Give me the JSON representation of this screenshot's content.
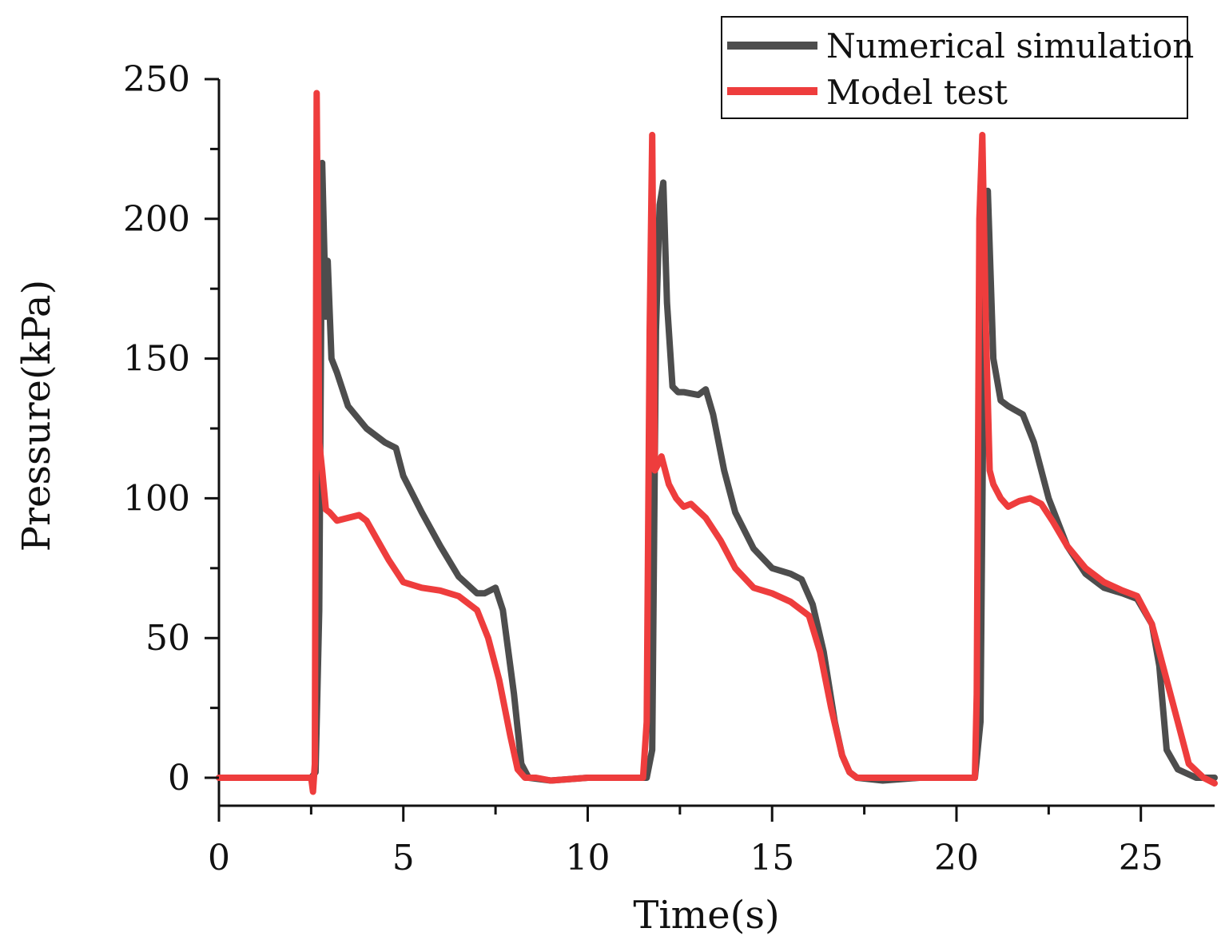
{
  "chart_data": {
    "type": "line",
    "title": "",
    "xlabel": "Time(s)",
    "ylabel": "Pressure(kPa)",
    "xlim": [
      0,
      27
    ],
    "ylim": [
      -10,
      250
    ],
    "xticks": [
      0,
      5,
      10,
      15,
      20,
      25
    ],
    "yticks": [
      0,
      50,
      100,
      150,
      200,
      250
    ],
    "xtick_labels": [
      "0",
      "5",
      "10",
      "15",
      "20",
      "25"
    ],
    "ytick_labels": [
      "0",
      "50",
      "100",
      "150",
      "200",
      "250"
    ],
    "grid": false,
    "legend_position": "top-right",
    "series": [
      {
        "name": "Numerical simulation",
        "color": "#4d4d4d",
        "x": [
          0,
          1,
          2,
          2.5,
          2.62,
          2.72,
          2.8,
          2.9,
          2.95,
          3.05,
          3.2,
          3.5,
          4.0,
          4.5,
          4.8,
          5.0,
          5.5,
          6.0,
          6.5,
          7.0,
          7.2,
          7.5,
          7.7,
          8.0,
          8.2,
          8.4,
          9.0,
          10.0,
          11.0,
          11.6,
          11.75,
          11.85,
          11.95,
          12.05,
          12.15,
          12.3,
          12.45,
          12.6,
          13.0,
          13.2,
          13.4,
          13.7,
          14.0,
          14.5,
          15.0,
          15.5,
          15.8,
          16.1,
          16.4,
          16.7,
          16.9,
          17.1,
          17.3,
          18.0,
          19.0,
          20.0,
          20.5,
          20.65,
          20.75,
          20.85,
          21.0,
          21.2,
          21.4,
          21.8,
          22.1,
          22.5,
          23.0,
          23.5,
          24.0,
          24.5,
          24.9,
          25.3,
          25.5,
          25.7,
          26.0,
          26.5,
          27.0
        ],
        "values": [
          0,
          0,
          0,
          0,
          2,
          60,
          220,
          165,
          185,
          150,
          145,
          133,
          125,
          120,
          118,
          108,
          95,
          83,
          72,
          66,
          66,
          68,
          60,
          30,
          5,
          0,
          -1,
          0,
          0,
          0,
          10,
          160,
          205,
          213,
          170,
          140,
          138,
          138,
          137,
          139,
          130,
          110,
          95,
          82,
          75,
          73,
          71,
          62,
          45,
          20,
          8,
          2,
          0,
          -1,
          0,
          0,
          0,
          20,
          170,
          210,
          150,
          135,
          133,
          130,
          120,
          100,
          83,
          73,
          68,
          66,
          64,
          55,
          40,
          10,
          3,
          0,
          0
        ]
      },
      {
        "name": "Model test",
        "color": "#ee3d3d",
        "x": [
          0,
          1,
          2,
          2.5,
          2.55,
          2.6,
          2.65,
          2.72,
          2.8,
          2.9,
          3.0,
          3.2,
          3.5,
          3.8,
          4.0,
          4.3,
          4.6,
          5.0,
          5.5,
          6.0,
          6.5,
          7.0,
          7.3,
          7.6,
          7.9,
          8.1,
          8.3,
          8.6,
          9.0,
          10.0,
          11.0,
          11.5,
          11.6,
          11.68,
          11.75,
          11.82,
          11.9,
          12.0,
          12.2,
          12.4,
          12.6,
          12.8,
          13.2,
          13.6,
          14.0,
          14.5,
          15.0,
          15.5,
          16.0,
          16.3,
          16.6,
          16.9,
          17.1,
          17.3,
          18.0,
          19.0,
          20.0,
          20.5,
          20.55,
          20.62,
          20.7,
          20.8,
          20.9,
          21.0,
          21.2,
          21.4,
          21.7,
          22.0,
          22.3,
          22.6,
          23.0,
          23.5,
          24.0,
          24.5,
          24.9,
          25.3,
          25.7,
          26.0,
          26.3,
          26.7,
          27.0
        ],
        "values": [
          0,
          0,
          0,
          0,
          -5,
          5,
          245,
          120,
          110,
          96,
          95,
          92,
          93,
          94,
          92,
          85,
          78,
          70,
          68,
          67,
          65,
          60,
          50,
          35,
          15,
          3,
          0,
          0,
          -1,
          0,
          0,
          0,
          20,
          160,
          230,
          110,
          112,
          115,
          105,
          100,
          97,
          98,
          93,
          85,
          75,
          68,
          66,
          63,
          58,
          45,
          25,
          8,
          2,
          0,
          0,
          0,
          0,
          0,
          30,
          200,
          230,
          160,
          110,
          105,
          100,
          97,
          99,
          100,
          98,
          92,
          83,
          75,
          70,
          67,
          65,
          55,
          35,
          20,
          5,
          0,
          -2
        ]
      }
    ]
  }
}
